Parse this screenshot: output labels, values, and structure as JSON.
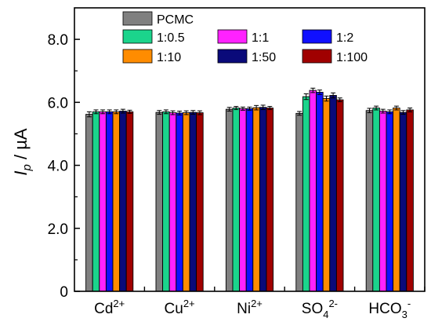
{
  "chart_data": {
    "type": "bar",
    "ylabel": {
      "main": "I",
      "sub": "p",
      "rest": " / µA"
    },
    "ylim": [
      0,
      9.0
    ],
    "yticks": [
      "0",
      "2.0",
      "4.0",
      "6.0",
      "8.0"
    ],
    "ytick_values": [
      0,
      2,
      4,
      6,
      8
    ],
    "categories": [
      {
        "base": "Cd",
        "sup": "2+",
        "sub": "",
        "sup2": ""
      },
      {
        "base": "Cu",
        "sup": "2+",
        "sub": "",
        "sup2": ""
      },
      {
        "base": "Ni",
        "sup": "2+",
        "sub": "",
        "sup2": ""
      },
      {
        "base": "SO",
        "sup": "",
        "sub": "4",
        "sup2": "2-"
      },
      {
        "base": "HCO",
        "sup": "",
        "sub": "3",
        "sup2": "-"
      }
    ],
    "legend_position": "top-left, 3 columns",
    "series": [
      {
        "name": "PCMC",
        "color": "#808080",
        "values": [
          5.62,
          5.68,
          5.78,
          5.65,
          5.74
        ],
        "errors": [
          0.08,
          0.06,
          0.06,
          0.06,
          0.07
        ]
      },
      {
        "name": "1:0.5",
        "color": "#1bd48c",
        "values": [
          5.7,
          5.7,
          5.82,
          6.18,
          5.82
        ],
        "errors": [
          0.06,
          0.06,
          0.05,
          0.09,
          0.06
        ]
      },
      {
        "name": "1:1",
        "color": "#ff22ff",
        "values": [
          5.7,
          5.67,
          5.8,
          6.38,
          5.72
        ],
        "errors": [
          0.06,
          0.06,
          0.05,
          0.07,
          0.06
        ]
      },
      {
        "name": "1:2",
        "color": "#1010ff",
        "values": [
          5.7,
          5.66,
          5.8,
          6.32,
          5.7
        ],
        "errors": [
          0.06,
          0.06,
          0.05,
          0.07,
          0.06
        ]
      },
      {
        "name": "1:10",
        "color": "#ff8c00",
        "values": [
          5.7,
          5.67,
          5.83,
          6.12,
          5.82
        ],
        "errors": [
          0.06,
          0.06,
          0.07,
          0.08,
          0.06
        ]
      },
      {
        "name": "1:50",
        "color": "#0a0a7a",
        "values": [
          5.72,
          5.68,
          5.84,
          6.22,
          5.68
        ],
        "errors": [
          0.06,
          0.06,
          0.07,
          0.08,
          0.06
        ]
      },
      {
        "name": "1:100",
        "color": "#a00000",
        "values": [
          5.7,
          5.67,
          5.82,
          6.08,
          5.76
        ],
        "errors": [
          0.05,
          0.06,
          0.05,
          0.06,
          0.06
        ]
      }
    ]
  }
}
